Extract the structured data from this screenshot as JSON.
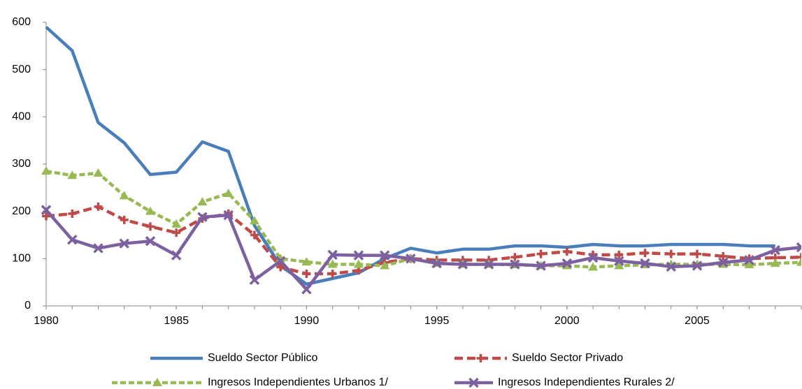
{
  "chart_data": {
    "type": "line",
    "x": [
      1980,
      1981,
      1982,
      1983,
      1984,
      1985,
      1986,
      1987,
      1988,
      1989,
      1990,
      1991,
      1992,
      1993,
      1994,
      1995,
      1996,
      1997,
      1998,
      1999,
      2000,
      2001,
      2002,
      2003,
      2004,
      2005,
      2006,
      2007,
      2008,
      2009
    ],
    "series": [
      {
        "name": "Sueldo Sector Público",
        "color": "#4a7ebb",
        "dash": "none",
        "marker": "none",
        "values": [
          590,
          540,
          388,
          345,
          278,
          283,
          347,
          327,
          170,
          85,
          46,
          58,
          70,
          100,
          122,
          112,
          120,
          120,
          127,
          127,
          124,
          130,
          127,
          127,
          130,
          130,
          130,
          127,
          127,
          null
        ]
      },
      {
        "name": "Sueldo Sector Privado",
        "color": "#be4b48",
        "dash": "12 6",
        "marker": "plus",
        "values": [
          190,
          195,
          210,
          182,
          168,
          155,
          185,
          195,
          150,
          82,
          68,
          68,
          75,
          92,
          100,
          97,
          97,
          97,
          103,
          110,
          115,
          108,
          108,
          112,
          110,
          110,
          105,
          100,
          102,
          103
        ]
      },
      {
        "name": "Ingresos Independientes Urbanos 1/",
        "color": "#98b954",
        "dash": "8 4",
        "marker": "triangle",
        "values": [
          285,
          276,
          281,
          233,
          200,
          173,
          220,
          238,
          180,
          100,
          93,
          88,
          88,
          85,
          100,
          90,
          88,
          88,
          87,
          85,
          85,
          82,
          85,
          87,
          88,
          88,
          88,
          87,
          90,
          92
        ]
      },
      {
        "name": "Ingresos Independientes Rurales 2/",
        "color": "#7d60a0",
        "dash": "none",
        "marker": "cross",
        "values": [
          203,
          140,
          122,
          132,
          137,
          107,
          188,
          192,
          55,
          95,
          35,
          108,
          107,
          107,
          100,
          90,
          88,
          88,
          88,
          85,
          90,
          102,
          95,
          90,
          83,
          85,
          92,
          97,
          118,
          124
        ]
      }
    ],
    "xlim": [
      1980,
      2009
    ],
    "xticks": [
      1980,
      1985,
      1990,
      1995,
      2000,
      2005
    ],
    "ylim": [
      0,
      600
    ],
    "yticks": [
      0,
      100,
      200,
      300,
      400,
      500,
      600
    ]
  }
}
